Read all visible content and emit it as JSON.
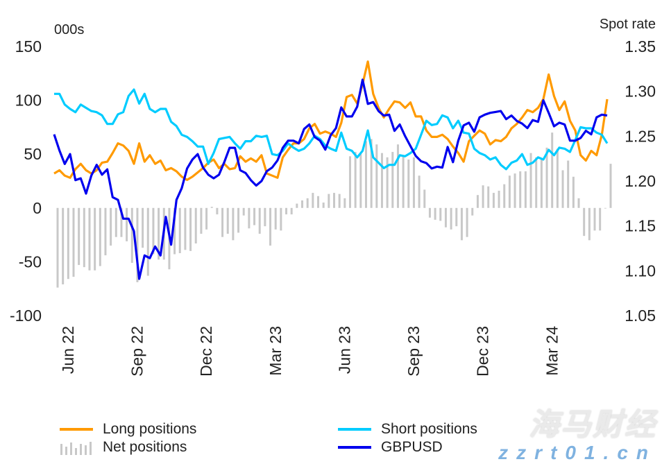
{
  "chart_data": {
    "type": "bar+line",
    "left_axis": {
      "label": "000s",
      "ylim": [
        -100,
        150
      ],
      "ticks": [
        150,
        100,
        50,
        0,
        -50,
        -100
      ]
    },
    "right_axis": {
      "label": "Spot rate",
      "ylim": [
        1.05,
        1.35
      ],
      "ticks": [
        "1.35",
        "1.30",
        "1.25",
        "1.20",
        "1.15",
        "1.10",
        "1.05"
      ]
    },
    "x_tick_labels": [
      {
        "label": "Jun 22",
        "month": "2022-06"
      },
      {
        "label": "Sep 22",
        "month": "2022-09"
      },
      {
        "label": "Dec 22",
        "month": "2022-12"
      },
      {
        "label": "Mar 23",
        "month": "2023-03"
      },
      {
        "label": "Jun 23",
        "month": "2023-06"
      },
      {
        "label": "Sep 23",
        "month": "2023-09"
      },
      {
        "label": "Dec 23",
        "month": "2023-12"
      },
      {
        "label": "Mar 24",
        "month": "2024-03"
      }
    ],
    "grid": false,
    "legend_position": "bottom",
    "x": [
      "2022-06-07",
      "2022-06-14",
      "2022-06-21",
      "2022-06-28",
      "2022-07-05",
      "2022-07-12",
      "2022-07-19",
      "2022-07-26",
      "2022-08-02",
      "2022-08-09",
      "2022-08-16",
      "2022-08-23",
      "2022-08-30",
      "2022-09-06",
      "2022-09-13",
      "2022-09-20",
      "2022-09-27",
      "2022-10-04",
      "2022-10-11",
      "2022-10-18",
      "2022-10-25",
      "2022-11-01",
      "2022-11-08",
      "2022-11-15",
      "2022-11-22",
      "2022-11-29",
      "2022-12-06",
      "2022-12-13",
      "2022-12-20",
      "2022-12-27",
      "2023-01-03",
      "2023-01-10",
      "2023-01-17",
      "2023-01-24",
      "2023-01-31",
      "2023-02-07",
      "2023-02-14",
      "2023-02-21",
      "2023-02-28",
      "2023-03-07",
      "2023-03-14",
      "2023-03-21",
      "2023-03-28",
      "2023-04-04",
      "2023-04-11",
      "2023-04-18",
      "2023-04-25",
      "2023-05-02",
      "2023-05-09",
      "2023-05-16",
      "2023-05-23",
      "2023-05-30",
      "2023-06-06",
      "2023-06-13",
      "2023-06-20",
      "2023-06-27",
      "2023-07-04",
      "2023-07-11",
      "2023-07-18",
      "2023-07-25",
      "2023-08-01",
      "2023-08-08",
      "2023-08-15",
      "2023-08-22",
      "2023-08-29",
      "2023-09-05",
      "2023-09-12",
      "2023-09-19",
      "2023-09-26",
      "2023-10-03",
      "2023-10-10",
      "2023-10-17",
      "2023-10-24",
      "2023-10-31",
      "2023-11-07",
      "2023-11-14",
      "2023-11-21",
      "2023-11-28",
      "2023-12-05",
      "2023-12-12",
      "2023-12-19",
      "2023-12-26",
      "2024-01-02",
      "2024-01-09",
      "2024-01-16",
      "2024-01-23",
      "2024-01-30",
      "2024-02-06",
      "2024-02-13",
      "2024-02-20",
      "2024-02-27",
      "2024-03-05",
      "2024-03-12",
      "2024-03-19",
      "2024-03-26",
      "2024-04-02",
      "2024-04-09",
      "2024-04-16",
      "2024-04-23",
      "2024-04-30",
      "2024-05-07",
      "2024-05-14",
      "2024-05-21",
      "2024-05-28",
      "2024-06-04"
    ],
    "series": [
      {
        "name": "Long positions",
        "type": "line",
        "axis": "left",
        "color": "#FF9A00",
        "values": [
          32,
          35,
          30,
          28,
          36,
          41,
          35,
          32,
          35,
          42,
          43,
          51,
          60,
          58,
          53,
          41,
          60,
          43,
          49,
          41,
          44,
          35,
          37,
          34,
          29,
          26,
          29,
          33,
          37,
          42,
          45,
          37,
          41,
          36,
          37,
          48,
          43,
          46,
          43,
          49,
          32,
          30,
          28,
          47,
          54,
          60,
          60,
          64,
          74,
          78,
          69,
          71,
          69,
          66,
          79,
          103,
          105,
          97,
          115,
          136,
          106,
          93,
          84,
          92,
          99,
          98,
          93,
          98,
          85,
          85,
          72,
          66,
          66,
          68,
          64,
          57,
          51,
          43,
          62,
          67,
          72,
          69,
          59,
          63,
          62,
          66,
          74,
          78,
          84,
          91,
          89,
          93,
          101,
          124,
          104,
          91,
          99,
          81,
          72,
          49,
          44,
          53,
          49,
          68,
          101
        ]
      },
      {
        "name": "Short positions",
        "type": "line",
        "axis": "left",
        "color": "#00CCFF",
        "values": [
          106,
          106,
          96,
          92,
          89,
          96,
          93,
          90,
          89,
          86,
          78,
          78,
          87,
          89,
          104,
          110,
          97,
          106,
          92,
          89,
          92,
          92,
          80,
          76,
          68,
          66,
          62,
          57,
          57,
          41,
          51,
          64,
          65,
          66,
          60,
          55,
          62,
          62,
          67,
          66,
          67,
          50,
          49,
          53,
          60,
          56,
          53,
          55,
          60,
          67,
          64,
          58,
          55,
          53,
          70,
          55,
          53,
          47,
          53,
          72,
          47,
          42,
          37,
          40,
          40,
          49,
          48,
          51,
          55,
          68,
          81,
          77,
          78,
          86,
          84,
          74,
          81,
          70,
          69,
          55,
          51,
          49,
          45,
          47,
          40,
          36,
          42,
          44,
          50,
          40,
          42,
          47,
          45,
          54,
          49,
          56,
          55,
          52,
          63,
          75,
          74,
          74,
          70,
          68,
          60
        ]
      },
      {
        "name": "Net positions",
        "type": "bar",
        "axis": "left",
        "color": "#C8C8C8",
        "values": [
          -74,
          -71,
          -66,
          -64,
          -53,
          -55,
          -58,
          -58,
          -54,
          -44,
          -35,
          -27,
          -27,
          -31,
          -51,
          -69,
          -37,
          -63,
          -43,
          -48,
          -48,
          -57,
          -43,
          -42,
          -39,
          -40,
          -33,
          -24,
          -20,
          1,
          -6,
          -27,
          -24,
          -30,
          -23,
          -7,
          -19,
          -16,
          -24,
          -17,
          -35,
          -20,
          -21,
          -6,
          -6,
          4,
          7,
          9,
          14,
          11,
          5,
          13,
          14,
          13,
          9,
          48,
          52,
          50,
          62,
          64,
          59,
          51,
          47,
          52,
          59,
          49,
          45,
          47,
          30,
          17,
          -9,
          -11,
          -12,
          -18,
          -20,
          -17,
          -30,
          -27,
          -7,
          12,
          21,
          20,
          14,
          16,
          22,
          30,
          32,
          34,
          34,
          51,
          47,
          46,
          56,
          70,
          55,
          35,
          44,
          29,
          9,
          -26,
          -30,
          -21,
          -21,
          0,
          41
        ]
      },
      {
        "name": "GBPUSD",
        "type": "line",
        "axis": "right",
        "color": "#0000EE",
        "values": [
          1.252,
          1.234,
          1.219,
          1.23,
          1.201,
          1.203,
          1.186,
          1.206,
          1.218,
          1.207,
          1.213,
          1.182,
          1.179,
          1.158,
          1.158,
          1.144,
          1.091,
          1.117,
          1.114,
          1.127,
          1.117,
          1.16,
          1.129,
          1.179,
          1.192,
          1.214,
          1.224,
          1.23,
          1.215,
          1.207,
          1.203,
          1.207,
          1.221,
          1.237,
          1.237,
          1.212,
          1.209,
          1.201,
          1.195,
          1.2,
          1.211,
          1.215,
          1.223,
          1.237,
          1.245,
          1.245,
          1.242,
          1.258,
          1.263,
          1.249,
          1.245,
          1.235,
          1.251,
          1.259,
          1.282,
          1.272,
          1.272,
          1.283,
          1.313,
          1.286,
          1.288,
          1.278,
          1.273,
          1.274,
          1.256,
          1.263,
          1.25,
          1.239,
          1.228,
          1.222,
          1.22,
          1.214,
          1.216,
          1.215,
          1.238,
          1.221,
          1.245,
          1.262,
          1.265,
          1.255,
          1.271,
          1.274,
          1.276,
          1.277,
          1.278,
          1.269,
          1.273,
          1.267,
          1.264,
          1.259,
          1.268,
          1.266,
          1.29,
          1.276,
          1.261,
          1.265,
          1.263,
          1.245,
          1.245,
          1.248,
          1.256,
          1.252,
          1.271,
          1.274,
          1.273
        ]
      }
    ]
  },
  "watermark": {
    "brand": "海马财经",
    "url": "zzrt01.cn"
  }
}
